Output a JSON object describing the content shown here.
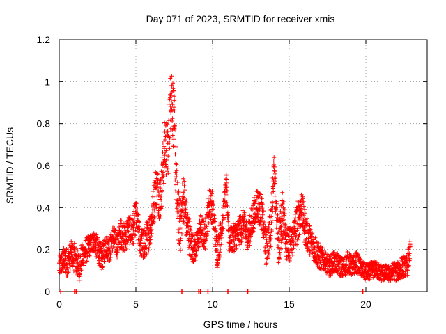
{
  "chart_data": {
    "type": "scatter",
    "title": "Day 071 of 2023, SRMTID for receiver xmis",
    "xlabel": "GPS time / hours",
    "ylabel": "SRMTID / TECUs",
    "xlim": [
      0,
      24
    ],
    "ylim": [
      0,
      1.2
    ],
    "x_ticks": [
      0,
      5,
      10,
      15,
      20
    ],
    "x_tick_labels": [
      "0",
      "5",
      "10",
      "15",
      "20"
    ],
    "y_ticks": [
      0,
      0.2,
      0.4,
      0.6,
      0.8,
      1.0,
      1.2
    ],
    "y_tick_labels": [
      "0",
      "0.2",
      "0.4",
      "0.6",
      "0.8",
      "1",
      "1.2"
    ],
    "grid": true,
    "marker": "+",
    "color": "#ff0000",
    "series": [
      {
        "name": "SRMTID",
        "profile": {
          "x": [
            0.0,
            0.3,
            0.5,
            0.8,
            1.0,
            1.3,
            1.5,
            1.8,
            2.0,
            2.3,
            2.5,
            2.8,
            3.0,
            3.3,
            3.5,
            3.8,
            4.0,
            4.3,
            4.5,
            4.8,
            5.0,
            5.3,
            5.5,
            5.8,
            6.0,
            6.3,
            6.6,
            6.9,
            7.1,
            7.3,
            7.5,
            7.7,
            7.9,
            8.1,
            8.3,
            8.6,
            8.9,
            9.2,
            9.5,
            9.8,
            10.0,
            10.3,
            10.6,
            10.9,
            11.1,
            11.4,
            11.7,
            12.0,
            12.3,
            12.6,
            12.9,
            13.2,
            13.5,
            13.8,
            14.0,
            14.3,
            14.6,
            14.9,
            15.2,
            15.5,
            15.8,
            16.1,
            16.4,
            16.7,
            17.0,
            17.3,
            17.6,
            17.9,
            18.2,
            18.5,
            18.8,
            19.1,
            19.4,
            19.7,
            20.0,
            20.3,
            20.6,
            20.9,
            21.2,
            21.5,
            21.8,
            22.1,
            22.4,
            22.7,
            22.9
          ],
          "y": [
            0.12,
            0.15,
            0.14,
            0.18,
            0.16,
            0.12,
            0.17,
            0.2,
            0.22,
            0.24,
            0.2,
            0.16,
            0.22,
            0.2,
            0.26,
            0.22,
            0.28,
            0.25,
            0.3,
            0.28,
            0.36,
            0.24,
            0.22,
            0.27,
            0.32,
            0.5,
            0.45,
            0.7,
            0.66,
            0.98,
            0.78,
            0.4,
            0.3,
            0.46,
            0.34,
            0.22,
            0.2,
            0.3,
            0.26,
            0.42,
            0.4,
            0.18,
            0.3,
            0.5,
            0.24,
            0.26,
            0.28,
            0.32,
            0.26,
            0.34,
            0.42,
            0.38,
            0.2,
            0.3,
            0.58,
            0.22,
            0.38,
            0.22,
            0.24,
            0.32,
            0.4,
            0.28,
            0.24,
            0.2,
            0.16,
            0.15,
            0.12,
            0.14,
            0.13,
            0.11,
            0.14,
            0.12,
            0.14,
            0.11,
            0.09,
            0.1,
            0.11,
            0.09,
            0.09,
            0.08,
            0.1,
            0.09,
            0.12,
            0.12,
            0.2
          ],
          "spread": [
            0.05,
            0.06,
            0.07,
            0.06,
            0.07,
            0.07,
            0.06,
            0.06,
            0.05,
            0.05,
            0.06,
            0.06,
            0.06,
            0.06,
            0.06,
            0.06,
            0.07,
            0.07,
            0.07,
            0.07,
            0.08,
            0.07,
            0.08,
            0.08,
            0.09,
            0.1,
            0.12,
            0.14,
            0.14,
            0.16,
            0.16,
            0.14,
            0.12,
            0.12,
            0.1,
            0.08,
            0.06,
            0.07,
            0.07,
            0.08,
            0.08,
            0.07,
            0.07,
            0.06,
            0.06,
            0.07,
            0.07,
            0.07,
            0.07,
            0.08,
            0.08,
            0.08,
            0.08,
            0.1,
            0.08,
            0.1,
            0.12,
            0.09,
            0.08,
            0.1,
            0.09,
            0.08,
            0.07,
            0.07,
            0.06,
            0.05,
            0.05,
            0.05,
            0.05,
            0.05,
            0.05,
            0.05,
            0.05,
            0.04,
            0.04,
            0.04,
            0.04,
            0.04,
            0.04,
            0.04,
            0.04,
            0.05,
            0.05,
            0.05,
            0.05
          ],
          "samples_per_hour": 120
        },
        "baseline_marks_x": [
          0.1,
          1.0,
          1.1,
          8.0,
          9.1,
          9.2,
          9.7,
          11.0,
          12.3,
          19.8
        ]
      }
    ]
  }
}
